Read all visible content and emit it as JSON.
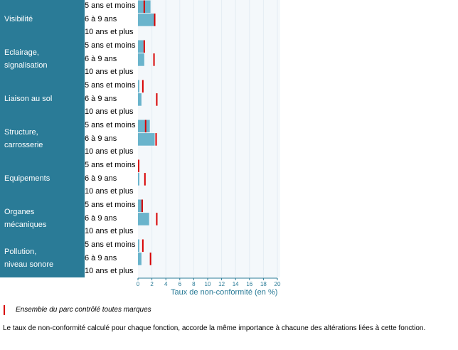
{
  "chart_data": {
    "type": "bar",
    "categories": [
      {
        "name": "Visibilité",
        "line1": "Visibilité",
        "line2": ""
      },
      {
        "name": "Eclairage, signalisation",
        "line1": "Eclairage,",
        "line2": "signalisation"
      },
      {
        "name": "Liaison au sol",
        "line1": "Liaison au sol",
        "line2": ""
      },
      {
        "name": "Structure, carrosserie",
        "line1": "Structure,",
        "line2": "carrosserie"
      },
      {
        "name": "Equipements",
        "line1": "Equipements",
        "line2": ""
      },
      {
        "name": "Organes mécaniques",
        "line1": "Organes",
        "line2": "mécaniques"
      },
      {
        "name": "Pollution, niveau sonore",
        "line1": "Pollution,",
        "line2": "niveau sonore"
      }
    ],
    "age_groups": [
      "5 ans et moins",
      "6 à 9 ans",
      "10 ans et plus"
    ],
    "values": [
      [
        1.8,
        2.3,
        null
      ],
      [
        0.8,
        0.9,
        null
      ],
      [
        0.2,
        0.5,
        null
      ],
      [
        1.7,
        2.4,
        null
      ],
      [
        0.1,
        0.2,
        null
      ],
      [
        0.7,
        1.6,
        null
      ],
      [
        0.2,
        0.5,
        null
      ]
    ],
    "reference": [
      [
        0.9,
        2.4,
        null
      ],
      [
        0.9,
        2.3,
        null
      ],
      [
        0.7,
        2.7,
        null
      ],
      [
        1.1,
        2.6,
        null
      ],
      [
        0.1,
        1.0,
        null
      ],
      [
        0.6,
        2.7,
        null
      ],
      [
        0.7,
        1.8,
        null
      ]
    ],
    "xlim": [
      0,
      20
    ],
    "xticks": [
      0,
      2,
      4,
      6,
      8,
      10,
      12,
      14,
      16,
      18,
      20
    ],
    "xlabel": "Taux de non-conformité (en %)",
    "grid": true,
    "colors": {
      "category_panel": "#2a7b97",
      "bar": "#6ab4cc",
      "reference": "#d80000",
      "axis": "#2a7b97",
      "plot_background": "#f4f8fb",
      "grid": "#e4edf3"
    }
  },
  "legend": {
    "text": "Ensemble du parc contrôlé toutes marques"
  },
  "footnote": "Le taux de non-conformité calculé pour chaque fonction, accorde la même importance à chacune des altérations liées à cette fonction."
}
